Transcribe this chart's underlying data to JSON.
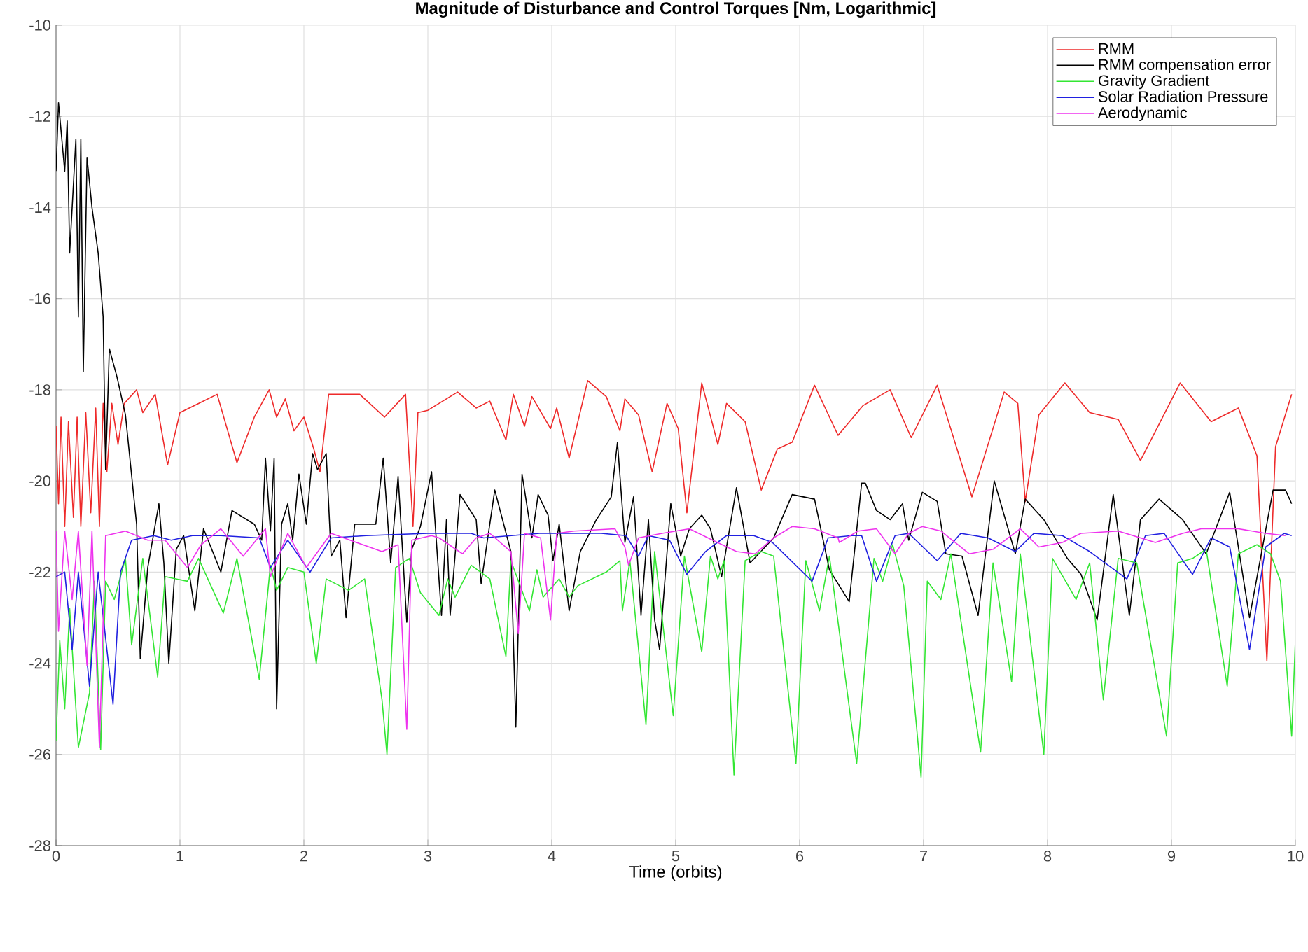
{
  "chart_data": {
    "type": "line",
    "title": "Magnitude of Disturbance and Control Torques [Nm, Logarithmic]",
    "xlabel": "Time (orbits)",
    "xlim": [
      0,
      10
    ],
    "xticks": [
      0,
      1,
      2,
      3,
      4,
      5,
      6,
      7,
      8,
      9,
      10
    ],
    "ylim": [
      -28,
      -10
    ],
    "yticks": [
      -28,
      -26,
      -24,
      -22,
      -20,
      -18,
      -16,
      -14,
      -12,
      -10
    ],
    "grid": true,
    "legend": "top right",
    "series": [
      {
        "name": "RMM",
        "color": "#ee2a2a",
        "x": [
          0,
          0.02,
          0.04,
          0.07,
          0.1,
          0.14,
          0.17,
          0.2,
          0.24,
          0.28,
          0.32,
          0.35,
          0.38,
          0.41,
          0.45,
          0.5,
          0.55,
          0.65,
          0.7,
          0.8,
          0.9,
          1.0,
          1.15,
          1.3,
          1.46,
          1.6,
          1.72,
          1.78,
          1.85,
          1.92,
          2.0,
          2.08,
          2.13,
          2.2,
          2.45,
          2.65,
          2.82,
          2.88,
          2.92,
          3.0,
          3.24,
          3.39,
          3.5,
          3.63,
          3.69,
          3.78,
          3.84,
          3.99,
          4.04,
          4.14,
          4.29,
          4.44,
          4.55,
          4.59,
          4.7,
          4.81,
          4.93,
          5.02,
          5.09,
          5.21,
          5.34,
          5.41,
          5.56,
          5.69,
          5.82,
          5.94,
          6.12,
          6.31,
          6.51,
          6.73,
          6.9,
          7.11,
          7.39,
          7.65,
          7.76,
          7.82,
          7.93,
          8.14,
          8.34,
          8.57,
          8.75,
          9.07,
          9.32,
          9.54,
          9.69,
          9.77,
          9.84,
          9.97
        ],
        "values": [
          -18.8,
          -20.5,
          -18.6,
          -21,
          -18.7,
          -20.8,
          -18.6,
          -21,
          -18.5,
          -20.7,
          -18.4,
          -21,
          -18.3,
          -19.8,
          -18.3,
          -19.2,
          -18.3,
          -18.0,
          -18.5,
          -18.1,
          -19.65,
          -18.5,
          -18.3,
          -18.1,
          -19.6,
          -18.6,
          -18.0,
          -18.6,
          -18.2,
          -18.9,
          -18.6,
          -19.3,
          -19.8,
          -18.1,
          -18.1,
          -18.6,
          -18.1,
          -21.0,
          -18.5,
          -18.45,
          -18.05,
          -18.4,
          -18.25,
          -19.1,
          -18.1,
          -18.8,
          -18.15,
          -18.85,
          -18.4,
          -19.5,
          -17.8,
          -18.15,
          -18.9,
          -18.2,
          -18.55,
          -19.8,
          -18.3,
          -18.85,
          -20.7,
          -17.85,
          -19.2,
          -18.3,
          -18.7,
          -20.2,
          -19.3,
          -19.15,
          -17.9,
          -19.0,
          -18.35,
          -18.0,
          -19.05,
          -17.9,
          -20.35,
          -18.05,
          -18.3,
          -20.45,
          -18.55,
          -17.85,
          -18.5,
          -18.65,
          -19.55,
          -17.85,
          -18.7,
          -18.4,
          -19.45,
          -23.95,
          -19.25,
          -18.1
        ]
      },
      {
        "name": "RMM compensation error",
        "color": "#000000",
        "x": [
          0,
          0.02,
          0.07,
          0.09,
          0.11,
          0.16,
          0.18,
          0.2,
          0.22,
          0.25,
          0.29,
          0.34,
          0.38,
          0.4,
          0.43,
          0.49,
          0.56,
          0.65,
          0.68,
          0.74,
          0.83,
          0.87,
          0.91,
          0.97,
          1.03,
          1.12,
          1.19,
          1.33,
          1.42,
          1.6,
          1.66,
          1.69,
          1.73,
          1.76,
          1.78,
          1.82,
          1.87,
          1.91,
          1.96,
          2.02,
          2.07,
          2.11,
          2.18,
          2.22,
          2.29,
          2.34,
          2.41,
          2.58,
          2.64,
          2.7,
          2.76,
          2.83,
          2.87,
          2.94,
          3.03,
          3.11,
          3.15,
          3.18,
          3.26,
          3.39,
          3.43,
          3.54,
          3.67,
          3.71,
          3.76,
          3.84,
          3.89,
          3.97,
          4.01,
          4.06,
          4.14,
          4.23,
          4.36,
          4.48,
          4.53,
          4.59,
          4.66,
          4.72,
          4.78,
          4.83,
          4.87,
          4.96,
          5.04,
          5.11,
          5.21,
          5.28,
          5.37,
          5.49,
          5.6,
          5.79,
          5.94,
          6.12,
          6.24,
          6.4,
          6.5,
          6.53,
          6.62,
          6.73,
          6.83,
          6.88,
          6.99,
          7.11,
          7.18,
          7.31,
          7.44,
          7.57,
          7.74,
          7.82,
          7.97,
          8.16,
          8.27,
          8.4,
          8.53,
          8.66,
          8.75,
          8.9,
          9.09,
          9.28,
          9.47,
          9.63,
          9.82,
          9.92,
          9.97
        ],
        "values": [
          -13.2,
          -11.7,
          -13.2,
          -12.1,
          -15.0,
          -12.5,
          -16.4,
          -12.5,
          -17.6,
          -12.9,
          -14.0,
          -15.0,
          -16.4,
          -19.75,
          -17.1,
          -17.7,
          -18.55,
          -20.95,
          -23.9,
          -21.9,
          -20.5,
          -21.8,
          -24.0,
          -21.5,
          -21.2,
          -22.85,
          -21.05,
          -22.0,
          -20.65,
          -20.95,
          -21.3,
          -19.5,
          -21.1,
          -19.5,
          -25.0,
          -20.95,
          -20.5,
          -21.3,
          -19.85,
          -20.95,
          -19.4,
          -19.75,
          -19.4,
          -21.65,
          -21.3,
          -23.0,
          -20.95,
          -20.95,
          -19.5,
          -21.8,
          -19.9,
          -23.1,
          -21.5,
          -21.0,
          -19.8,
          -22.95,
          -20.85,
          -22.95,
          -20.3,
          -20.85,
          -22.25,
          -20.2,
          -21.55,
          -25.4,
          -19.85,
          -21.25,
          -20.3,
          -20.75,
          -21.75,
          -20.95,
          -22.85,
          -21.55,
          -20.85,
          -20.35,
          -19.15,
          -21.35,
          -20.35,
          -22.95,
          -20.85,
          -23.05,
          -23.7,
          -20.5,
          -21.65,
          -21.05,
          -20.75,
          -21.05,
          -22.1,
          -20.15,
          -21.8,
          -21.25,
          -20.3,
          -20.4,
          -21.95,
          -22.65,
          -20.05,
          -20.05,
          -20.65,
          -20.85,
          -20.5,
          -21.3,
          -20.25,
          -20.45,
          -21.6,
          -21.65,
          -22.95,
          -20.0,
          -21.6,
          -20.4,
          -20.85,
          -21.7,
          -22.05,
          -23.05,
          -20.3,
          -22.95,
          -20.85,
          -20.4,
          -20.85,
          -21.6,
          -20.25,
          -23.0,
          -20.2,
          -20.2,
          -20.5
        ]
      },
      {
        "name": "Gravity Gradient",
        "color": "#33e633",
        "x": [
          0,
          0.03,
          0.07,
          0.11,
          0.18,
          0.27,
          0.31,
          0.36,
          0.4,
          0.47,
          0.56,
          0.61,
          0.7,
          0.82,
          0.88,
          1.06,
          1.15,
          1.35,
          1.46,
          1.64,
          1.73,
          1.78,
          1.87,
          2.0,
          2.1,
          2.18,
          2.36,
          2.49,
          2.63,
          2.67,
          2.74,
          2.85,
          2.94,
          3.09,
          3.16,
          3.22,
          3.35,
          3.5,
          3.63,
          3.67,
          3.82,
          3.88,
          3.93,
          4.06,
          4.14,
          4.21,
          4.44,
          4.55,
          4.57,
          4.63,
          4.76,
          4.83,
          4.98,
          5.07,
          5.21,
          5.28,
          5.34,
          5.39,
          5.47,
          5.56,
          5.69,
          5.79,
          5.97,
          6.05,
          6.16,
          6.24,
          6.46,
          6.6,
          6.67,
          6.75,
          6.84,
          6.98,
          7.03,
          7.14,
          7.22,
          7.46,
          7.56,
          7.71,
          7.78,
          7.97,
          8.04,
          8.23,
          8.34,
          8.45,
          8.57,
          8.72,
          8.96,
          9.05,
          9.17,
          9.28,
          9.45,
          9.54,
          9.69,
          9.8,
          9.88,
          9.97,
          10
        ],
        "values": [
          -25.7,
          -23.5,
          -25.0,
          -22.8,
          -25.85,
          -24.65,
          -22.2,
          -25.9,
          -22.2,
          -22.6,
          -21.7,
          -23.6,
          -21.7,
          -24.3,
          -22.1,
          -22.2,
          -21.7,
          -22.9,
          -21.7,
          -24.35,
          -21.85,
          -22.4,
          -21.9,
          -22.0,
          -24.0,
          -22.15,
          -22.4,
          -22.15,
          -24.8,
          -26.0,
          -21.9,
          -21.7,
          -22.45,
          -22.95,
          -22.15,
          -22.55,
          -21.85,
          -22.15,
          -23.85,
          -21.75,
          -22.85,
          -21.95,
          -22.55,
          -22.15,
          -22.55,
          -22.3,
          -22.0,
          -21.75,
          -22.85,
          -21.75,
          -25.35,
          -21.55,
          -25.15,
          -21.65,
          -23.75,
          -21.65,
          -22.15,
          -21.75,
          -26.45,
          -21.75,
          -21.55,
          -21.65,
          -26.2,
          -21.75,
          -22.85,
          -21.65,
          -26.2,
          -21.7,
          -22.2,
          -21.4,
          -22.3,
          -26.5,
          -22.2,
          -22.6,
          -21.6,
          -25.95,
          -21.8,
          -24.4,
          -21.6,
          -26.0,
          -21.7,
          -22.6,
          -21.8,
          -24.8,
          -21.7,
          -21.8,
          -25.6,
          -21.8,
          -21.7,
          -21.5,
          -24.5,
          -21.6,
          -21.4,
          -21.6,
          -22.2,
          -25.6,
          -23.5
        ]
      },
      {
        "name": "Solar Radiation Pressure",
        "color": "#2020e0",
        "x": [
          0,
          0.07,
          0.13,
          0.18,
          0.27,
          0.34,
          0.46,
          0.52,
          0.61,
          0.79,
          0.93,
          1.1,
          1.33,
          1.64,
          1.73,
          1.87,
          2.05,
          2.22,
          2.5,
          3.0,
          3.35,
          3.45,
          3.9,
          4.4,
          4.6,
          4.7,
          4.78,
          4.95,
          5.09,
          5.24,
          5.41,
          5.63,
          5.78,
          6.1,
          6.23,
          6.42,
          6.5,
          6.62,
          6.77,
          6.88,
          7.11,
          7.3,
          7.52,
          7.74,
          7.89,
          8.12,
          8.34,
          8.64,
          8.79,
          8.94,
          9.17,
          9.32,
          9.47,
          9.63,
          9.76,
          9.91,
          9.97
        ],
        "values": [
          -22.1,
          -22.0,
          -23.7,
          -22.0,
          -24.5,
          -22.0,
          -24.9,
          -22.0,
          -21.3,
          -21.2,
          -21.3,
          -21.2,
          -21.2,
          -21.25,
          -21.9,
          -21.3,
          -22.0,
          -21.25,
          -21.2,
          -21.15,
          -21.15,
          -21.25,
          -21.15,
          -21.15,
          -21.2,
          -21.65,
          -21.2,
          -21.3,
          -22.05,
          -21.55,
          -21.2,
          -21.2,
          -21.35,
          -22.2,
          -21.25,
          -21.2,
          -21.2,
          -22.2,
          -21.2,
          -21.15,
          -21.75,
          -21.15,
          -21.25,
          -21.55,
          -21.15,
          -21.2,
          -21.55,
          -22.15,
          -21.2,
          -21.15,
          -22.05,
          -21.25,
          -21.45,
          -23.7,
          -21.45,
          -21.15,
          -21.2
        ]
      },
      {
        "name": "Aerodynamic",
        "color": "#ee33ee",
        "x": [
          0,
          0.02,
          0.07,
          0.13,
          0.18,
          0.25,
          0.29,
          0.35,
          0.4,
          0.56,
          0.74,
          0.88,
          1.06,
          1.17,
          1.33,
          1.51,
          1.69,
          1.73,
          1.87,
          2.02,
          2.22,
          2.63,
          2.76,
          2.83,
          2.87,
          3.03,
          3.09,
          3.28,
          3.39,
          3.5,
          3.67,
          3.73,
          3.78,
          3.91,
          3.99,
          4.04,
          4.18,
          4.51,
          4.59,
          4.62,
          4.7,
          4.89,
          5.11,
          5.26,
          5.49,
          5.64,
          5.79,
          5.94,
          6.12,
          6.31,
          6.32,
          6.47,
          6.62,
          6.77,
          6.88,
          6.99,
          7.14,
          7.37,
          7.56,
          7.78,
          7.93,
          8.12,
          8.27,
          8.57,
          8.87,
          9.09,
          9.24,
          9.54,
          9.76,
          9.92
        ],
        "values": [
          -21.1,
          -23.3,
          -21.1,
          -22.6,
          -21.1,
          -24.05,
          -21.1,
          -25.85,
          -21.2,
          -21.1,
          -21.3,
          -21.3,
          -21.9,
          -21.4,
          -21.05,
          -21.65,
          -21.05,
          -22.1,
          -21.15,
          -21.9,
          -21.15,
          -21.55,
          -21.4,
          -25.45,
          -21.3,
          -21.2,
          -21.25,
          -21.6,
          -21.25,
          -21.15,
          -21.55,
          -23.35,
          -21.15,
          -21.25,
          -23.05,
          -21.15,
          -21.1,
          -21.05,
          -21.45,
          -21.85,
          -21.25,
          -21.15,
          -21.05,
          -21.25,
          -21.55,
          -21.6,
          -21.25,
          -21.0,
          -21.05,
          -21.25,
          -21.35,
          -21.1,
          -21.05,
          -21.6,
          -21.15,
          -21.0,
          -21.1,
          -21.6,
          -21.5,
          -21.05,
          -21.45,
          -21.35,
          -21.15,
          -21.1,
          -21.35,
          -21.15,
          -21.05,
          -21.05,
          -21.15,
          -21.2
        ]
      }
    ]
  }
}
